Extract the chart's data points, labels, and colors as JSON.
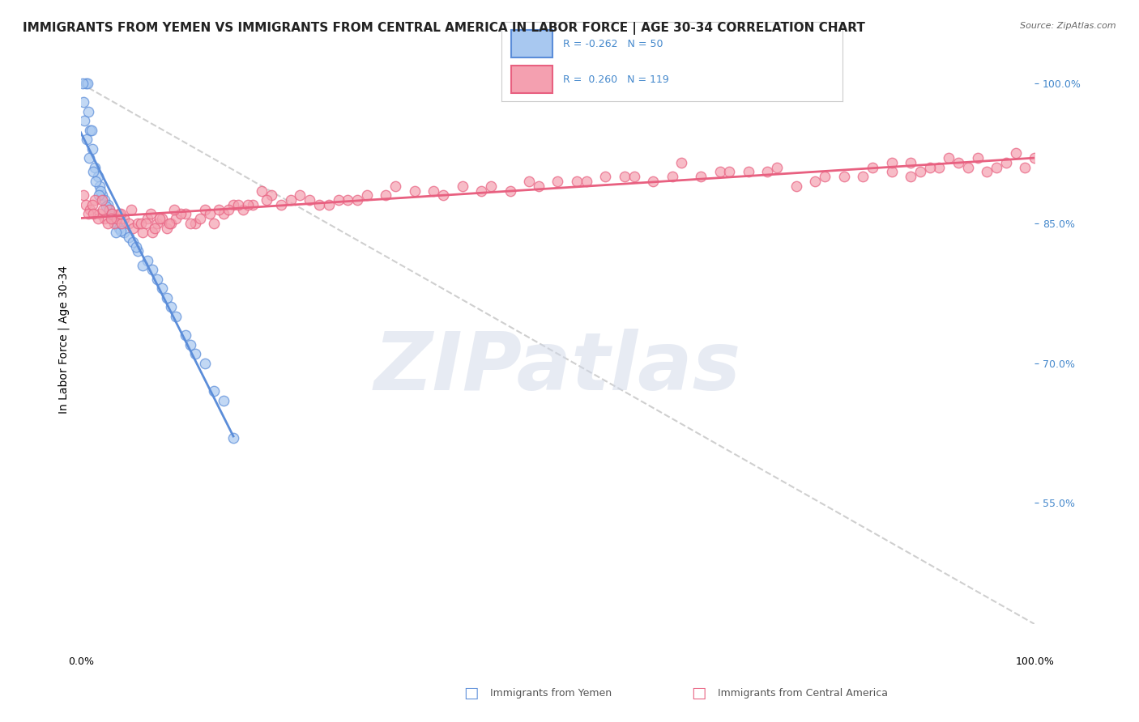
{
  "title": "IMMIGRANTS FROM YEMEN VS IMMIGRANTS FROM CENTRAL AMERICA IN LABOR FORCE | AGE 30-34 CORRELATION CHART",
  "source": "Source: ZipAtlas.com",
  "xlabel_bottom_left": "0.0%",
  "xlabel_bottom_right": "100.0%",
  "ylabel": "In Labor Force | Age 30-34",
  "ylabel_right_ticks": [
    "100.0%",
    "85.0%",
    "70.0%",
    "55.0%"
  ],
  "xmin": 0.0,
  "xmax": 100.0,
  "ymin": 42.0,
  "ymax": 103.0,
  "legend_r1": "R = -0.262",
  "legend_n1": "N = 50",
  "legend_r2": "R =  0.260",
  "legend_n2": "N = 119",
  "color_yemen": "#a8c8f0",
  "color_central": "#f4a0b0",
  "color_line_yemen": "#5b8dd9",
  "color_line_central": "#e86080",
  "color_watermark": "#d0d8e8",
  "watermark_text": "ZIPatlas",
  "watermark_fontsize": 72,
  "scatter_alpha": 0.7,
  "scatter_size": 80,
  "yemen_x": [
    0.5,
    0.8,
    1.0,
    1.2,
    1.5,
    1.8,
    2.0,
    2.2,
    2.5,
    2.8,
    3.0,
    3.2,
    3.5,
    3.8,
    4.0,
    4.5,
    5.0,
    5.5,
    6.0,
    7.0,
    8.0,
    9.0,
    10.0,
    11.0,
    13.0,
    15.0,
    0.3,
    0.4,
    0.6,
    0.9,
    1.3,
    1.6,
    2.1,
    2.7,
    3.3,
    4.2,
    6.5,
    8.5,
    12.0,
    14.0,
    0.7,
    1.1,
    1.9,
    3.7,
    5.8,
    7.5,
    9.5,
    11.5,
    0.2,
    16.0
  ],
  "yemen_y": [
    100.0,
    97.0,
    95.0,
    93.0,
    91.0,
    90.0,
    89.0,
    88.0,
    87.5,
    87.0,
    86.5,
    86.0,
    85.5,
    85.0,
    84.5,
    84.0,
    83.5,
    83.0,
    82.0,
    81.0,
    79.0,
    77.0,
    75.0,
    73.0,
    70.0,
    66.0,
    98.0,
    96.0,
    94.0,
    92.0,
    90.5,
    89.5,
    88.5,
    86.8,
    85.8,
    84.2,
    80.5,
    78.0,
    71.0,
    67.0,
    100.0,
    95.0,
    88.0,
    84.0,
    82.5,
    80.0,
    76.0,
    72.0,
    100.0,
    62.0
  ],
  "central_x": [
    0.5,
    1.0,
    1.5,
    2.0,
    2.5,
    3.0,
    3.5,
    4.0,
    4.5,
    5.0,
    5.5,
    6.0,
    6.5,
    7.0,
    7.5,
    8.0,
    8.5,
    9.0,
    9.5,
    10.0,
    11.0,
    12.0,
    13.0,
    14.0,
    15.0,
    16.0,
    17.0,
    18.0,
    20.0,
    22.0,
    25.0,
    28.0,
    30.0,
    35.0,
    40.0,
    45.0,
    50.0,
    55.0,
    60.0,
    65.0,
    70.0,
    75.0,
    80.0,
    85.0,
    0.3,
    0.8,
    1.2,
    1.8,
    2.3,
    2.8,
    3.3,
    3.8,
    4.3,
    5.3,
    6.3,
    7.3,
    8.3,
    9.3,
    10.5,
    12.5,
    14.5,
    16.5,
    19.0,
    21.0,
    24.0,
    27.0,
    32.0,
    37.0,
    42.0,
    48.0,
    52.0,
    57.0,
    62.0,
    67.0,
    72.0,
    77.0,
    82.0,
    88.0,
    90.0,
    95.0,
    1.3,
    2.2,
    3.2,
    4.2,
    6.8,
    7.8,
    9.8,
    11.5,
    13.5,
    15.5,
    17.5,
    19.5,
    23.0,
    26.0,
    29.0,
    33.0,
    38.0,
    43.0,
    47.0,
    53.0,
    58.0,
    63.0,
    68.0,
    73.0,
    78.0,
    83.0,
    87.0,
    91.0,
    92.0,
    93.0,
    94.0,
    96.0,
    97.0,
    98.0,
    99.0,
    100.0,
    85.0,
    89.0,
    87.0
  ],
  "central_y": [
    87.0,
    86.5,
    87.5,
    86.0,
    85.5,
    86.5,
    85.0,
    86.0,
    85.5,
    85.0,
    84.5,
    85.0,
    84.0,
    85.5,
    84.0,
    85.0,
    85.5,
    84.5,
    85.0,
    85.5,
    86.0,
    85.0,
    86.5,
    85.0,
    86.0,
    87.0,
    86.5,
    87.0,
    88.0,
    87.5,
    87.0,
    87.5,
    88.0,
    88.5,
    89.0,
    88.5,
    89.5,
    90.0,
    89.5,
    90.0,
    90.5,
    89.0,
    90.0,
    90.5,
    88.0,
    86.0,
    87.0,
    85.5,
    86.5,
    85.0,
    86.0,
    85.5,
    85.0,
    86.5,
    85.0,
    86.0,
    85.5,
    85.0,
    86.0,
    85.5,
    86.5,
    87.0,
    88.5,
    87.0,
    87.5,
    87.5,
    88.0,
    88.5,
    88.5,
    89.0,
    89.5,
    90.0,
    90.0,
    90.5,
    90.5,
    89.5,
    90.0,
    90.5,
    91.0,
    90.5,
    86.0,
    87.5,
    85.5,
    86.0,
    85.0,
    84.5,
    86.5,
    85.0,
    86.0,
    86.5,
    87.0,
    87.5,
    88.0,
    87.0,
    87.5,
    89.0,
    88.0,
    89.0,
    89.5,
    89.5,
    90.0,
    91.5,
    90.5,
    91.0,
    90.0,
    91.0,
    91.5,
    92.0,
    91.5,
    91.0,
    92.0,
    91.0,
    91.5,
    92.5,
    91.0,
    92.0,
    91.5,
    91.0,
    90.0
  ],
  "grid_color": "#e0e0e0",
  "bg_color": "#ffffff",
  "title_fontsize": 11,
  "axis_label_fontsize": 10,
  "tick_fontsize": 9
}
